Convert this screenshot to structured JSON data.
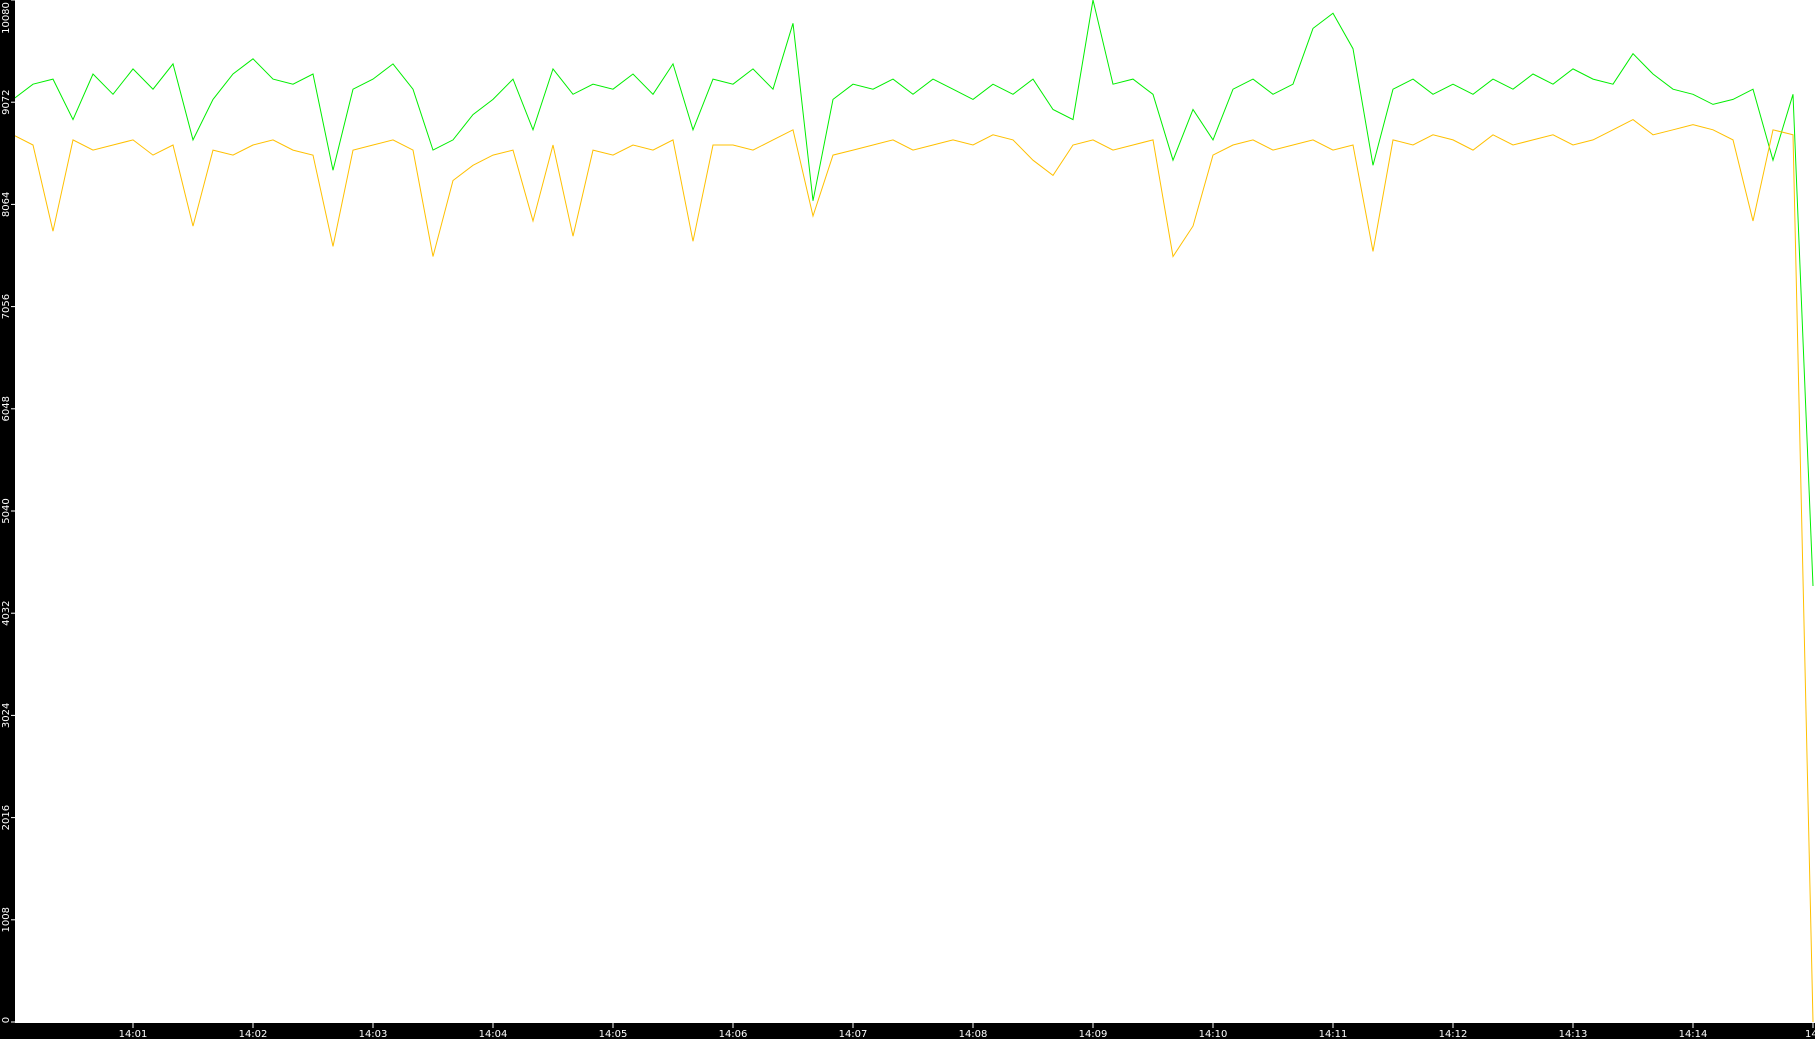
{
  "chart_data": {
    "type": "line",
    "title": "",
    "xlabel": "",
    "ylabel": "",
    "ylim": [
      0,
      10080
    ],
    "y_ticks": [
      "0",
      "1008",
      "2016",
      "3024",
      "4032",
      "5040",
      "6048",
      "7056",
      "8064",
      "9072",
      "10080"
    ],
    "x_ticks": [
      "14:01",
      "14:02",
      "14:03",
      "14:04",
      "14:05",
      "14:06",
      "14:07",
      "14:08",
      "14:09",
      "14:10",
      "14:11",
      "14:12",
      "14:13",
      "14:14",
      "14:"
    ],
    "x_range": [
      "14:00:00",
      "14:15:00"
    ],
    "x_step_seconds": 10,
    "grid": false,
    "background": "#ffffff",
    "axis_color": "#000000",
    "series": [
      {
        "color": "#00ee00",
        "values": [
          9100,
          9250,
          9300,
          8900,
          9350,
          9150,
          9400,
          9200,
          9450,
          8700,
          9100,
          9350,
          9500,
          9300,
          9250,
          9350,
          8400,
          9200,
          9300,
          9450,
          9200,
          8600,
          8700,
          8950,
          9100,
          9300,
          8800,
          9400,
          9150,
          9250,
          9200,
          9350,
          9150,
          9450,
          8800,
          9300,
          9250,
          9400,
          9200,
          9850,
          8100,
          9100,
          9250,
          9200,
          9300,
          9150,
          9300,
          9200,
          9100,
          9250,
          9150,
          9300,
          9000,
          8900,
          10080,
          9250,
          9300,
          9150,
          8500,
          9000,
          8700,
          9200,
          9300,
          9150,
          9250,
          9800,
          9950,
          9600,
          8450,
          9200,
          9300,
          9150,
          9250,
          9150,
          9300,
          9200,
          9350,
          9250,
          9400,
          9300,
          9250,
          9550,
          9350,
          9200,
          9150,
          9050,
          9100,
          9200,
          8500,
          9150,
          4300
        ]
      },
      {
        "color": "#ffc000",
        "values": [
          8750,
          8650,
          7800,
          8700,
          8600,
          8650,
          8700,
          8550,
          8650,
          7850,
          8600,
          8550,
          8650,
          8700,
          8600,
          8550,
          7650,
          8600,
          8650,
          8700,
          8600,
          7550,
          8300,
          8450,
          8550,
          8600,
          7900,
          8650,
          7750,
          8600,
          8550,
          8650,
          8600,
          8700,
          7700,
          8650,
          8650,
          8600,
          8700,
          8800,
          7950,
          8550,
          8600,
          8650,
          8700,
          8600,
          8650,
          8700,
          8650,
          8750,
          8700,
          8500,
          8350,
          8650,
          8700,
          8600,
          8650,
          8700,
          7550,
          7850,
          8550,
          8650,
          8700,
          8600,
          8650,
          8700,
          8600,
          8650,
          7600,
          8700,
          8650,
          8750,
          8700,
          8600,
          8750,
          8650,
          8700,
          8750,
          8650,
          8700,
          8800,
          8900,
          8750,
          8800,
          8850,
          8800,
          8700,
          7900,
          8800,
          8750,
          0
        ]
      }
    ]
  }
}
